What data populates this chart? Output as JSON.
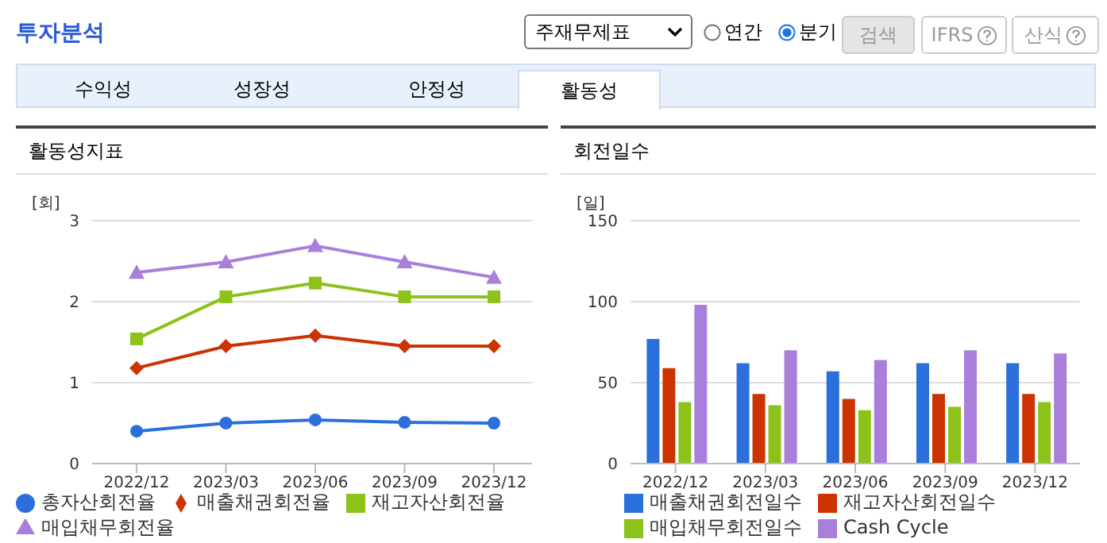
{
  "chart_data": [
    {
      "type": "other",
      "title": "투자분석",
      "annotations": [
        "주재무제표",
        "연간",
        "분기",
        "검색",
        "IFRS",
        "산식",
        "수익성",
        "성장성",
        "안정성",
        "활동성"
      ]
    },
    {
      "type": "line",
      "title": "활동성지표",
      "ylabel": "[회]",
      "categories": [
        "2022/12",
        "2023/03",
        "2023/06",
        "2023/09",
        "2023/12"
      ],
      "ylim": [
        0,
        3
      ],
      "yticks": [
        0,
        1,
        2,
        3
      ],
      "grid": "y",
      "legend": "bottom",
      "line_style": "solid",
      "series": [
        {
          "name": "총자산회전율",
          "color": "#2a6fdb",
          "marker": "circle",
          "values": [
            0.4,
            0.5,
            0.54,
            0.51,
            0.5
          ]
        },
        {
          "name": "매출채권회전율",
          "color": "#cc3300",
          "marker": "diamond",
          "values": [
            1.18,
            1.45,
            1.58,
            1.45,
            1.45
          ]
        },
        {
          "name": "재고자산회전율",
          "color": "#8cc21a",
          "marker": "square",
          "values": [
            1.54,
            2.06,
            2.23,
            2.06,
            2.06
          ]
        },
        {
          "name": "매입채무회전율",
          "color": "#a97fdb",
          "marker": "triangle",
          "values": [
            2.36,
            2.49,
            2.69,
            2.49,
            2.3
          ]
        }
      ]
    },
    {
      "type": "bar",
      "title": "회전일수",
      "ylabel": "[일]",
      "categories": [
        "2022/12",
        "2023/03",
        "2023/06",
        "2023/09",
        "2023/12"
      ],
      "ylim": [
        0,
        150
      ],
      "yticks": [
        0,
        50,
        100,
        150
      ],
      "grid": "y",
      "legend": "bottom",
      "series": [
        {
          "name": "매출채권회전일수",
          "color": "#2a6fdb",
          "values": [
            77,
            62,
            57,
            62,
            62
          ]
        },
        {
          "name": "재고자산회전일수",
          "color": "#cc3300",
          "values": [
            59,
            43,
            40,
            43,
            43
          ]
        },
        {
          "name": "매입채무회전일수",
          "color": "#8cc21a",
          "values": [
            38,
            36,
            33,
            35,
            38
          ]
        },
        {
          "name": "Cash Cycle",
          "color": "#a97fdb",
          "values": [
            98,
            70,
            64,
            70,
            68
          ]
        }
      ]
    }
  ]
}
